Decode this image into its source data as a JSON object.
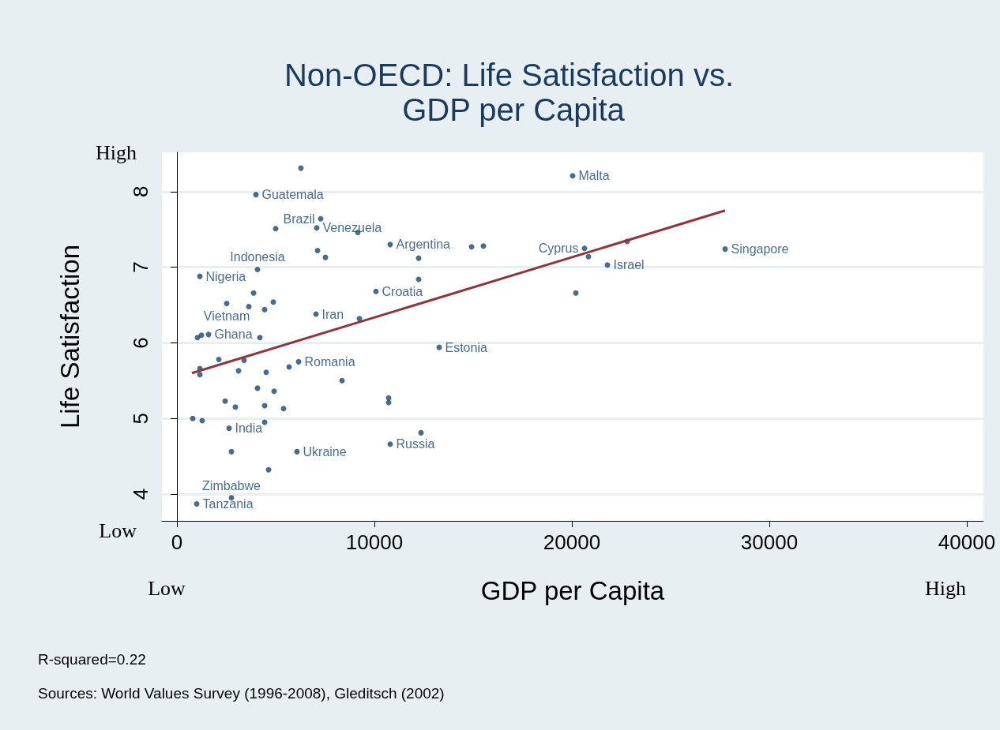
{
  "chart_data": {
    "type": "scatter",
    "title": "Non-OECD: Life Satisfaction vs. GDP per Capita",
    "xlabel": "GDP per Capita",
    "ylabel": "Life Satisfaction",
    "annotations": [
      "High",
      "Low",
      "Low",
      "High",
      "R-squared=0.22",
      "Sources: World Values Survey (1996-2008), Gleditsch (2002)"
    ],
    "xlim": [
      -760,
      40840
    ],
    "xticks": [
      0,
      10000,
      20000,
      30000,
      40000
    ],
    "ylim": [
      3.645,
      8.52
    ],
    "yticks": [
      4,
      5,
      6,
      7,
      8
    ],
    "grid": "y",
    "marker": "circle",
    "series": [
      {
        "color": "#1a476f",
        "x": [
          6280,
          4000,
          7280,
          5000,
          7080,
          9160,
          10800,
          14920,
          15520,
          7120,
          7520,
          12240,
          4080,
          1160,
          12240,
          3880,
          10080,
          2520,
          3640,
          4880,
          4440,
          7040,
          9240,
          1600,
          1240,
          1040,
          4200,
          13280,
          2120,
          3400,
          6160,
          1160,
          1160,
          3120,
          4520,
          5680,
          8360,
          4080,
          4920,
          10720,
          10720,
          2440,
          2960,
          4440,
          5400,
          800,
          1280,
          4440,
          2640,
          12360,
          10800,
          2760,
          6080,
          4640,
          2760,
          1000,
          20040,
          20640,
          20840,
          22800,
          21800,
          20200,
          27760
        ],
        "values": [
          8.31,
          7.96,
          7.64,
          7.51,
          7.52,
          7.46,
          7.3,
          7.27,
          7.28,
          7.22,
          7.13,
          7.12,
          6.97,
          6.88,
          6.84,
          6.66,
          6.68,
          6.52,
          6.48,
          6.54,
          6.44,
          6.38,
          6.32,
          6.11,
          6.1,
          6.07,
          6.07,
          5.94,
          5.78,
          5.77,
          5.75,
          5.66,
          5.58,
          5.63,
          5.61,
          5.68,
          5.5,
          5.4,
          5.36,
          5.27,
          5.21,
          5.23,
          5.15,
          5.17,
          5.13,
          5.0,
          4.97,
          4.95,
          4.87,
          4.81,
          4.66,
          4.56,
          4.56,
          4.32,
          3.95,
          3.87,
          8.21,
          7.25,
          7.14,
          7.34,
          7.03,
          6.66,
          7.24
        ],
        "value_labels": [
          null,
          "Guatemala",
          "Brazil",
          null,
          "Venezuela",
          null,
          "Argentina",
          null,
          null,
          null,
          null,
          null,
          "Indonesia",
          "Nigeria",
          null,
          null,
          "Croatia",
          "Vietnam",
          null,
          null,
          null,
          "Iran",
          null,
          "Ghana",
          null,
          null,
          null,
          "Estonia",
          null,
          null,
          "Romania",
          null,
          null,
          null,
          null,
          null,
          null,
          null,
          null,
          null,
          null,
          null,
          null,
          null,
          null,
          null,
          null,
          null,
          "India",
          null,
          "Russia",
          null,
          "Ukraine",
          null,
          "Zimbabwe",
          "Tanzania",
          "Malta",
          "Cyprus",
          null,
          null,
          "Israel",
          null,
          "Singapore"
        ]
      },
      {
        "type": "line",
        "color": "#90353b",
        "marker": "none",
        "x": [
          760,
          27760
        ],
        "values": [
          5.6,
          7.75
        ]
      }
    ]
  }
}
